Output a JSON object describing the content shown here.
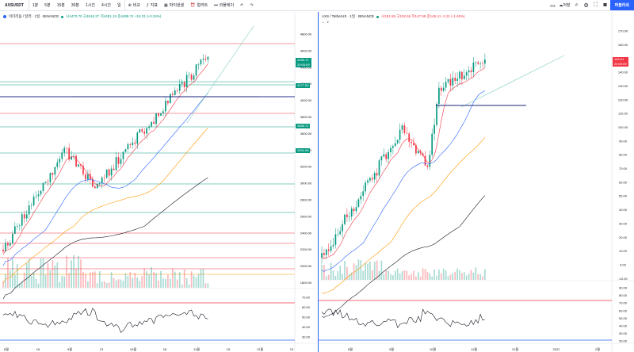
{
  "topbar": {
    "symbol": "AXSUSDT",
    "timeframes": [
      "1분",
      "5분",
      "15분",
      "30분",
      "1시간",
      "4시간",
      "일"
    ],
    "tools": [
      {
        "icon": "compare-icon",
        "label": "비교"
      },
      {
        "icon": "indicator-icon",
        "label": "지표"
      },
      {
        "icon": "financial-icon",
        "label": "파이낸셜"
      },
      {
        "icon": "alert-icon",
        "label": "얼러트"
      },
      {
        "icon": "replay-icon",
        "label": "리플레이"
      }
    ],
    "right_tools": {
      "save_label": "저장"
    },
    "publish_label": "퍼블리쉬"
  },
  "left": {
    "title": "이더리움 / 달러 · 1일 · BINANCE",
    "ohlc": "시4470.70 고4616.27 저4451.15 종4488.74 +15.31 (+0.34%)",
    "price_tags": [
      {
        "text": "4488.74",
        "sub": "20:05:59",
        "color": "#089981",
        "price": 4488.74
      },
      {
        "text": "4177.50",
        "color": "#089981",
        "price": 4177.5
      },
      {
        "text": "3688.72",
        "color": "#089981",
        "price": 3688.72
      },
      {
        "text": "3394.08",
        "color": "#089981",
        "price": 3394.08
      }
    ],
    "axis_ticks": [
      "4800.00",
      "4600.00",
      "4400.00",
      "4200.00",
      "4000.00",
      "3800.00",
      "3600.00",
      "3400.00",
      "3200.00",
      "3000.00",
      "2800.00",
      "2600.00",
      "2400.00",
      "2200.00",
      "2000.00",
      "1800.00"
    ],
    "rsi_ticks": [
      "70.00",
      "60.00",
      "50.00",
      "40.00",
      "30.00"
    ],
    "x_ticks": [
      "8월",
      "16",
      "9월",
      "13",
      "10월",
      "18",
      "11월",
      "15",
      "12월",
      "13"
    ]
  },
  "right": {
    "title": "AXS / TetherUS · 1일 · BINANCE",
    "ohlc": "시151.55 고152.65 저147.99 종149.41 -2.21 (-1.46%)",
    "sub_count": "2",
    "price_tags": [
      {
        "text": "149.41",
        "sub": "20:05:59",
        "color": "#f23645",
        "price": 149.41
      }
    ],
    "axis_ticks": [
      "170.00",
      "160.00",
      "150.00",
      "140.00",
      "130.00",
      "120.00",
      "110.00",
      "100.00",
      "90.00",
      "80.00",
      "70.00",
      "60.00",
      "50.00",
      "40.00",
      "30.00",
      "20.00",
      "10.00",
      "0.00",
      "-10.00"
    ],
    "rsi_ticks": [
      "90.00",
      "80.00",
      "70.00",
      "60.00",
      "50.00",
      "40.00",
      "30.00",
      "20.00"
    ],
    "x_ticks": [
      "8월",
      "9월",
      "10월",
      "11월",
      "12월",
      "2022",
      "2월"
    ]
  },
  "colors": {
    "up": "#089981",
    "down": "#f23645",
    "accent": "#2962ff"
  }
}
